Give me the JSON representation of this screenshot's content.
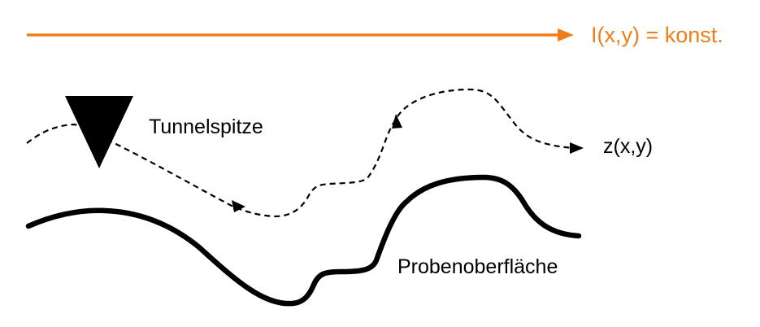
{
  "colors": {
    "accent": "#f07d1a",
    "ink": "#000000",
    "background": "#ffffff"
  },
  "labels": {
    "current": "I(x,y) = konst.",
    "tip": "Tunnelspitze",
    "height": "z(x,y)",
    "surface": "Probenoberfläche"
  },
  "icons": {
    "current_arrow": "arrow-right-icon",
    "tip": "triangle-down-icon"
  }
}
